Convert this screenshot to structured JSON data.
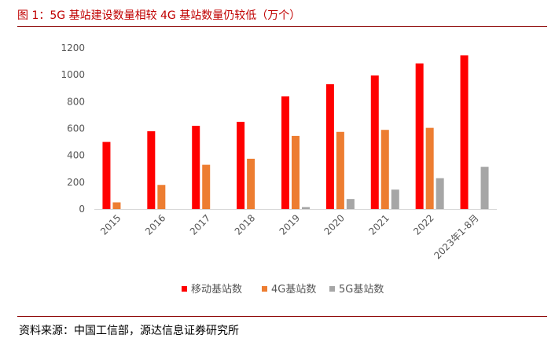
{
  "title": "图 1：5G 基站建设数量相较 4G 基站数量仍较低（万个）",
  "source": "资料来源：中国工信部，源达信息证券研究所",
  "chart_data": {
    "type": "bar",
    "categories": [
      "2015",
      "2016",
      "2017",
      "2018",
      "2019",
      "2020",
      "2021",
      "2022",
      "2023年1-8月"
    ],
    "series": [
      {
        "name": "移动基站数",
        "color": "#ff0000",
        "values": [
          500,
          580,
          620,
          650,
          840,
          930,
          995,
          1085,
          1145
        ]
      },
      {
        "name": "4G基站数",
        "color": "#ed7d31",
        "values": [
          50,
          180,
          330,
          375,
          545,
          575,
          590,
          605,
          null
        ]
      },
      {
        "name": "5G基站数",
        "color": "#a6a6a6",
        "values": [
          null,
          null,
          null,
          null,
          15,
          75,
          145,
          230,
          315
        ]
      }
    ],
    "yticks": [
      "0",
      "200",
      "400",
      "600",
      "800",
      "1000",
      "1200"
    ],
    "ylim": [
      0,
      1200
    ],
    "legend_position": "bottom",
    "grid": false
  }
}
